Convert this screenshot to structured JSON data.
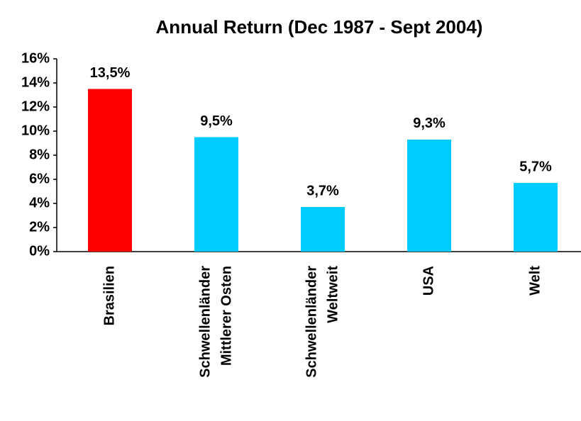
{
  "chart_data": {
    "type": "bar",
    "title": "Annual Return (Dec 1987 - Sept 2004)",
    "categories": [
      [
        "Brasilien"
      ],
      [
        "Schwellenländer",
        "Mittlerer Osten"
      ],
      [
        "Schwellenländer",
        "Weltweit"
      ],
      [
        "USA"
      ],
      [
        "Welt"
      ]
    ],
    "values": [
      13.5,
      9.5,
      3.7,
      9.3,
      5.7
    ],
    "value_labels": [
      "13,5%",
      "9,5%",
      "3,7%",
      "9,3%",
      "5,7%"
    ],
    "colors": [
      "#ff0000",
      "#00ccff",
      "#00ccff",
      "#00ccff",
      "#00ccff"
    ],
    "ylim": [
      0,
      16
    ],
    "yticks": [
      {
        "value": 0,
        "label": "0%"
      },
      {
        "value": 2,
        "label": "2%"
      },
      {
        "value": 4,
        "label": "4%"
      },
      {
        "value": 6,
        "label": "6%"
      },
      {
        "value": 8,
        "label": "8%"
      },
      {
        "value": 10,
        "label": "10%"
      },
      {
        "value": 12,
        "label": "12%"
      },
      {
        "value": 14,
        "label": "14%"
      },
      {
        "value": 16,
        "label": "16%"
      }
    ],
    "grid": false
  }
}
